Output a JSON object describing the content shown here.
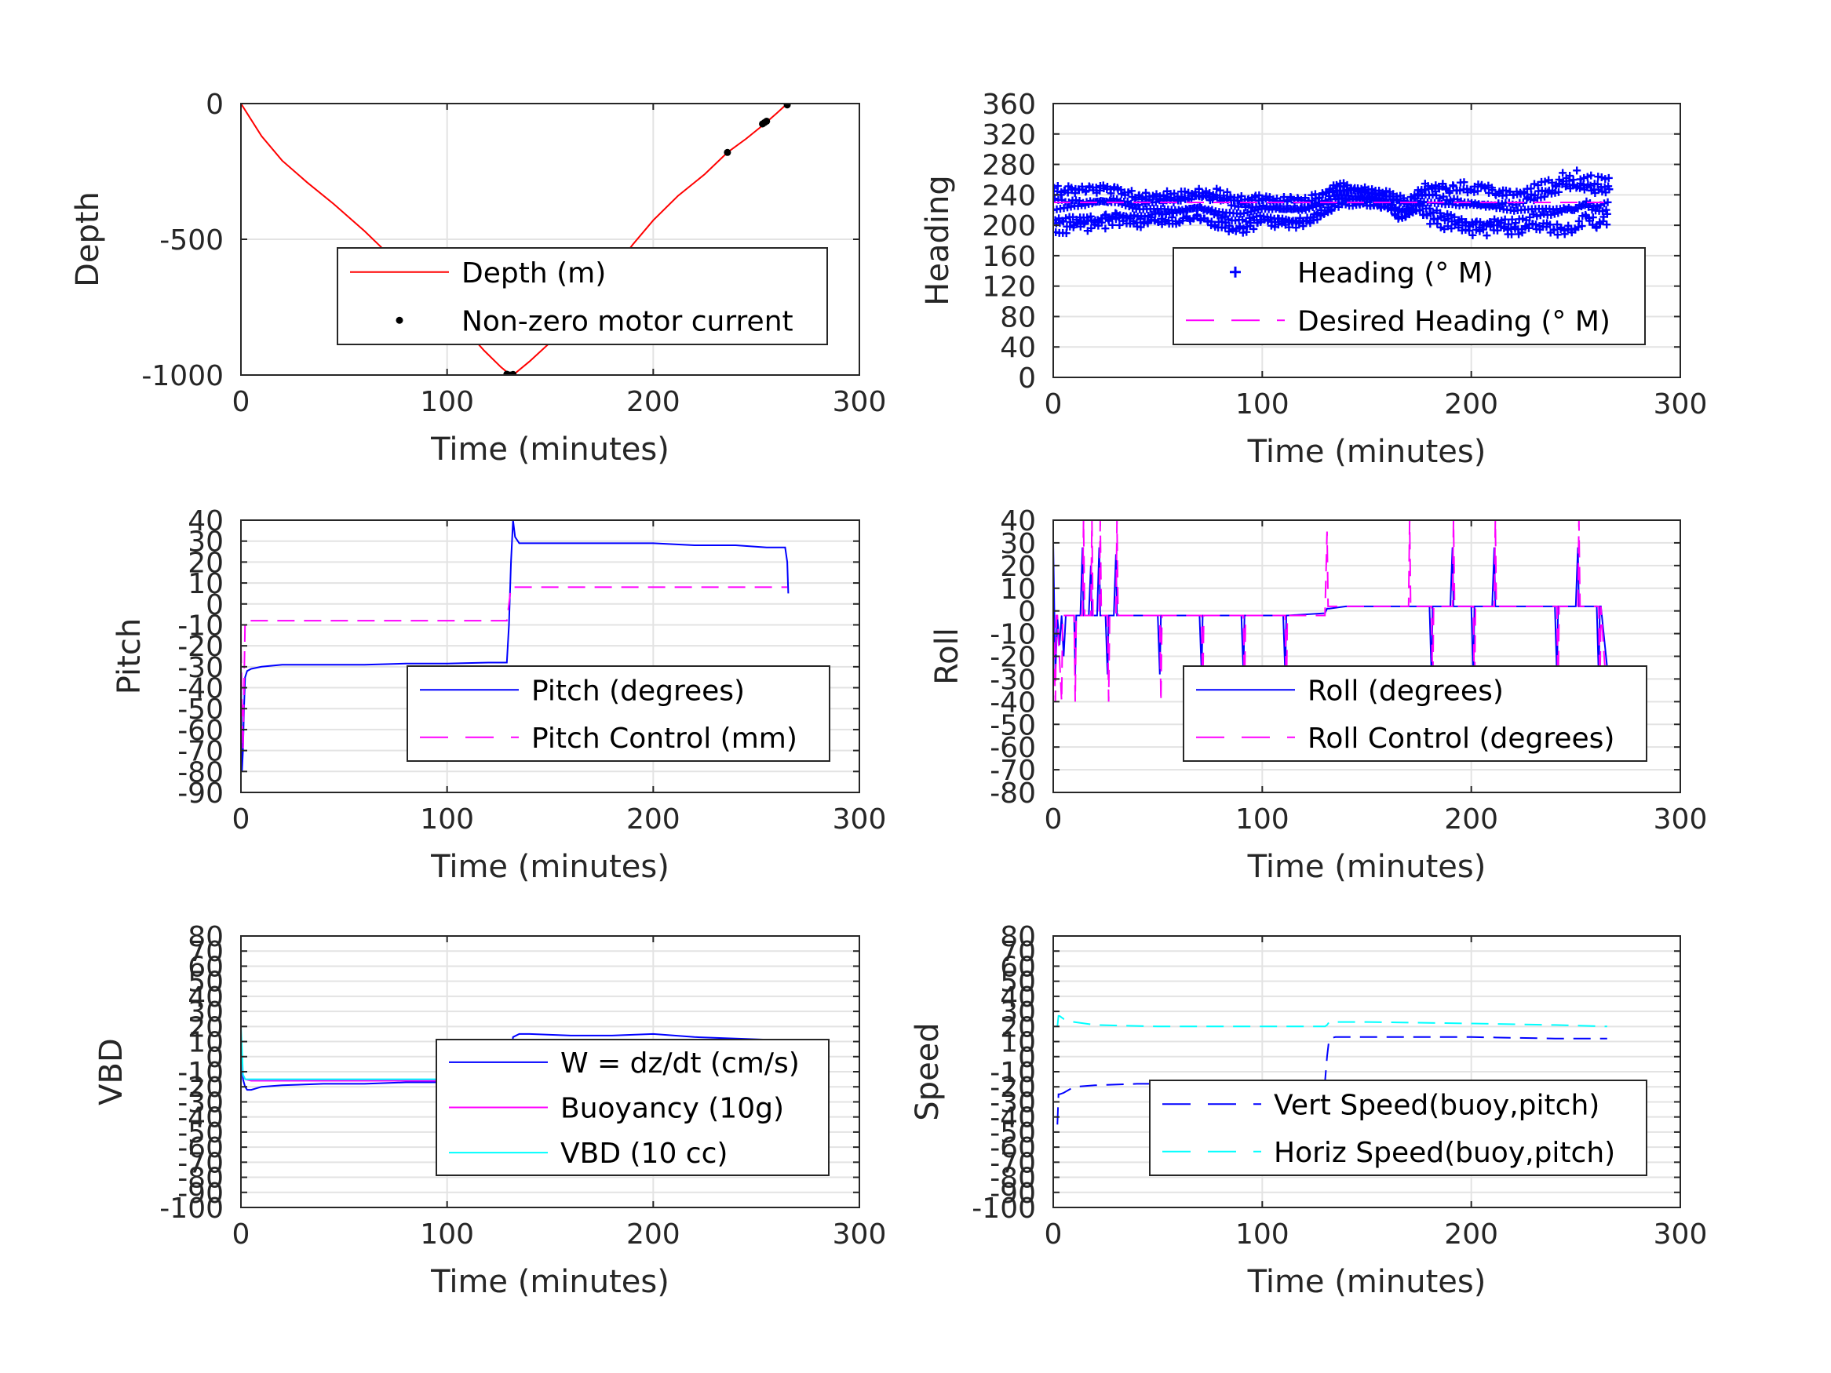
{
  "figure": {
    "background": "#ffffff"
  },
  "chart_data": [
    {
      "type": "line",
      "xlabel": "Time (minutes)",
      "ylabel": "Depth",
      "xlim": [
        0,
        300
      ],
      "ylim": [
        -1000,
        0
      ],
      "xticks": [
        "0",
        "100",
        "200",
        "300"
      ],
      "yticks": [
        "-1000",
        "-500",
        "0"
      ],
      "grid": true,
      "legend_position": "center-right",
      "series": [
        {
          "name": "Depth (m)",
          "style": "solid",
          "color": "#ff0000",
          "x": [
            0,
            10,
            20,
            32,
            45,
            60,
            75,
            90,
            105,
            118,
            126,
            130,
            132,
            140,
            150,
            160,
            170,
            180,
            190,
            200,
            212,
            225,
            236,
            245,
            254,
            260,
            265
          ],
          "y": [
            0,
            -120,
            -210,
            -290,
            -370,
            -470,
            -580,
            -690,
            -800,
            -910,
            -970,
            -995,
            -1000,
            -950,
            -880,
            -800,
            -710,
            -620,
            -520,
            -430,
            -340,
            -260,
            -180,
            -130,
            -75,
            -35,
            0
          ]
        },
        {
          "name": "Non-zero motor current",
          "style": "points",
          "color": "#000000",
          "x": [
            129,
            130,
            131,
            132,
            236,
            253,
            254,
            255,
            265
          ],
          "y": [
            -997,
            -1000,
            -1000,
            -998,
            -180,
            -75,
            -70,
            -65,
            -5
          ]
        }
      ]
    },
    {
      "type": "scatter",
      "xlabel": "Time (minutes)",
      "ylabel": "Heading",
      "xlim": [
        0,
        300
      ],
      "ylim": [
        0,
        360
      ],
      "xticks": [
        "0",
        "100",
        "200",
        "300"
      ],
      "yticks": [
        "0",
        "40",
        "80",
        "120",
        "160",
        "200",
        "240",
        "280",
        "320",
        "360"
      ],
      "grid": true,
      "legend_position": "center-right",
      "series": [
        {
          "name": "Heading (° M)",
          "style": "plus",
          "color": "#0000ff",
          "t_range": [
            0,
            266
          ],
          "band": [
            [
              0,
              185,
              255
            ],
            [
              10,
              190,
              255
            ],
            [
              20,
              190,
              258
            ],
            [
              30,
              200,
              255
            ],
            [
              40,
              195,
              245
            ],
            [
              50,
              200,
              245
            ],
            [
              60,
              200,
              245
            ],
            [
              70,
              205,
              250
            ],
            [
              80,
              190,
              250
            ],
            [
              90,
              185,
              245
            ],
            [
              100,
              200,
              240
            ],
            [
              110,
              195,
              240
            ],
            [
              120,
              195,
              240
            ],
            [
              130,
              210,
              245
            ],
            [
              135,
              220,
              260
            ],
            [
              140,
              225,
              255
            ],
            [
              150,
              225,
              250
            ],
            [
              160,
              220,
              245
            ],
            [
              165,
              205,
              240
            ],
            [
              170,
              210,
              235
            ],
            [
              175,
              215,
              250
            ],
            [
              180,
              200,
              260
            ],
            [
              190,
              190,
              260
            ],
            [
              200,
              180,
              260
            ],
            [
              210,
              185,
              255
            ],
            [
              220,
              185,
              250
            ],
            [
              230,
              190,
              255
            ],
            [
              240,
              185,
              265
            ],
            [
              245,
              180,
              280
            ],
            [
              250,
              185,
              275
            ],
            [
              255,
              200,
              270
            ],
            [
              260,
              190,
              265
            ],
            [
              266,
              200,
              265
            ]
          ]
        },
        {
          "name": "Desired Heading (° M)",
          "style": "dashed",
          "color": "#ff00ff",
          "x": [
            0,
            266
          ],
          "y": [
            230,
            230
          ]
        }
      ]
    },
    {
      "type": "line",
      "xlabel": "Time (minutes)",
      "ylabel": "Pitch",
      "xlim": [
        0,
        300
      ],
      "ylim": [
        -90,
        40
      ],
      "xticks": [
        "0",
        "100",
        "200",
        "300"
      ],
      "yticks": [
        "-90",
        "-80",
        "-70",
        "-60",
        "-50",
        "-40",
        "-30",
        "-20",
        "-10",
        "0",
        "10",
        "20",
        "30",
        "40"
      ],
      "grid": true,
      "legend_position": "lower-right",
      "series": [
        {
          "name": "Pitch (degrees)",
          "style": "solid",
          "color": "#0000ff",
          "x": [
            0,
            0.5,
            1,
            1.5,
            2,
            3,
            5,
            10,
            20,
            40,
            60,
            80,
            100,
            120,
            129,
            130,
            131,
            132,
            133,
            135,
            140,
            160,
            180,
            200,
            220,
            240,
            255,
            264,
            265,
            265.5
          ],
          "y": [
            -30,
            -80,
            -70,
            -50,
            -35,
            -32,
            -31,
            -30,
            -29,
            -29,
            -29,
            -28.5,
            -28.5,
            -28,
            -28,
            -10,
            20,
            40,
            32,
            29,
            29,
            29,
            29,
            29,
            28,
            28,
            27,
            27,
            20,
            5
          ]
        },
        {
          "name": "Pitch Control (mm)",
          "style": "dashed",
          "color": "#ff00ff",
          "x": [
            0,
            1,
            2,
            3,
            10,
            50,
            100,
            129,
            130,
            131,
            132,
            150,
            200,
            250,
            265
          ],
          "y": [
            -20,
            -70,
            -8,
            -8,
            -8,
            -8,
            -8,
            -8,
            0,
            8,
            8,
            8,
            8,
            8,
            8
          ]
        }
      ]
    },
    {
      "type": "line",
      "xlabel": "Time (minutes)",
      "ylabel": "Roll",
      "xlim": [
        0,
        300
      ],
      "ylim": [
        -80,
        40
      ],
      "xticks": [
        "0",
        "100",
        "200",
        "300"
      ],
      "yticks": [
        "-80",
        "-70",
        "-60",
        "-50",
        "-40",
        "-30",
        "-20",
        "-10",
        "0",
        "10",
        "20",
        "30",
        "40"
      ],
      "grid": true,
      "legend_position": "lower-right",
      "series": [
        {
          "name": "Roll (degrees)",
          "style": "solid",
          "color": "#0000ff",
          "x": [
            0,
            1,
            2,
            3,
            4,
            5,
            6,
            8,
            10,
            10.5,
            11,
            13,
            14,
            14.5,
            15,
            17,
            18,
            18.5,
            19,
            21,
            22,
            22.5,
            23,
            25,
            26,
            26.5,
            27,
            29,
            30,
            30.5,
            31,
            50,
            51,
            51.5,
            52,
            70,
            71,
            71.5,
            72,
            90,
            91,
            91.5,
            92,
            110,
            111,
            111.5,
            112,
            130,
            131,
            131.5,
            132,
            140,
            170,
            180,
            181,
            181.5,
            182,
            190,
            191,
            191.5,
            192,
            200,
            201,
            201.5,
            202,
            210,
            211,
            211.5,
            212,
            240,
            241,
            241.5,
            242,
            250,
            251,
            251.5,
            252,
            260,
            261,
            261.5,
            262,
            265
          ],
          "y": [
            30,
            -28,
            -3,
            -15,
            -2,
            -20,
            -2,
            -2,
            -2,
            -28,
            -2,
            -2,
            28,
            -2,
            -2,
            -2,
            20,
            -2,
            -2,
            -2,
            28,
            -2,
            -2,
            -2,
            -28,
            -2,
            -2,
            -2,
            25,
            -2,
            -2,
            -2,
            -28,
            -2,
            -2,
            -2,
            -28,
            -2,
            -2,
            -2,
            -28,
            -2,
            -2,
            -2,
            -28,
            -2,
            -2,
            -1,
            1,
            1,
            1,
            2,
            2,
            2,
            -30,
            2,
            2,
            2,
            28,
            2,
            2,
            2,
            -30,
            2,
            2,
            2,
            28,
            2,
            2,
            2,
            -30,
            2,
            2,
            2,
            28,
            2,
            2,
            2,
            -30,
            2,
            2,
            -25
          ]
        },
        {
          "name": "Roll Control (degrees)",
          "style": "dashed",
          "color": "#ff00ff",
          "x": [
            0,
            1,
            1.5,
            2,
            4,
            4.5,
            5,
            10,
            10.5,
            11,
            14,
            14.5,
            15,
            18,
            18.5,
            19,
            22,
            22.5,
            23,
            26,
            26.5,
            27,
            30,
            30.5,
            31,
            51,
            51.5,
            52,
            71,
            71.5,
            72,
            91,
            91.5,
            92,
            111,
            111.5,
            112,
            130,
            131,
            131.5,
            132,
            170,
            170.5,
            171,
            181,
            181.5,
            182,
            191,
            191.5,
            192,
            201,
            201.5,
            202,
            211,
            211.5,
            212,
            241,
            241.5,
            242,
            251,
            251.5,
            252,
            261,
            261.5,
            262,
            265
          ],
          "y": [
            -2,
            -40,
            -2,
            -2,
            -40,
            -2,
            -2,
            -2,
            -40,
            -2,
            -2,
            40,
            -2,
            -2,
            40,
            -2,
            -2,
            40,
            -2,
            -2,
            -40,
            -2,
            -2,
            40,
            -2,
            -2,
            -40,
            -2,
            -2,
            -40,
            -2,
            -2,
            -40,
            -2,
            -2,
            -40,
            -2,
            -2,
            35,
            2,
            2,
            2,
            40,
            2,
            2,
            -40,
            2,
            2,
            40,
            2,
            2,
            -40,
            2,
            2,
            40,
            2,
            2,
            -40,
            2,
            2,
            40,
            2,
            2,
            -40,
            2,
            -40
          ]
        }
      ]
    },
    {
      "type": "line",
      "xlabel": "Time (minutes)",
      "ylabel": "VBD",
      "xlim": [
        0,
        300
      ],
      "ylim": [
        -100,
        80
      ],
      "xticks": [
        "0",
        "100",
        "200",
        "300"
      ],
      "yticks": [
        "-100",
        "-90",
        "-80",
        "-70",
        "-60",
        "-50",
        "-40",
        "-30",
        "-20",
        "-10",
        "0",
        "10",
        "20",
        "30",
        "40",
        "50",
        "60",
        "70",
        "80"
      ],
      "grid": true,
      "legend_position": "center-right",
      "series": [
        {
          "name": "W = dz/dt (cm/s)",
          "style": "solid",
          "color": "#0000ff",
          "x": [
            0,
            1,
            2,
            3,
            5,
            10,
            20,
            40,
            60,
            80,
            100,
            120,
            128,
            130,
            131,
            132,
            135,
            140,
            160,
            180,
            200,
            220,
            240,
            260,
            265
          ],
          "y": [
            0,
            -15,
            -20,
            -22,
            -22,
            -20,
            -19,
            -18,
            -18,
            -17,
            -17,
            -17,
            -17,
            -10,
            0,
            13,
            15,
            15,
            14,
            14,
            15,
            13,
            12,
            11,
            11
          ]
        },
        {
          "name": "Buoyancy (10g)",
          "style": "solid",
          "color": "#ff00ff",
          "x": [
            0,
            1,
            2,
            5,
            10,
            50,
            100,
            128,
            130,
            131,
            132,
            150,
            200,
            250,
            265
          ],
          "y": [
            0,
            -12,
            -15,
            -16,
            -16,
            -16,
            -16,
            -16,
            -5,
            5,
            10,
            10,
            10,
            10,
            8
          ]
        },
        {
          "name": "VBD (10 cc)",
          "style": "solid",
          "color": "#00ffff",
          "x": [
            0,
            0.5,
            1,
            2,
            5,
            10,
            50,
            100,
            128,
            130,
            131,
            132,
            150,
            200,
            250,
            265
          ],
          "y": [
            20,
            5,
            -12,
            -15,
            -15,
            -15,
            -15,
            -15,
            -15,
            -5,
            5,
            10,
            10,
            10,
            10,
            10
          ]
        }
      ]
    },
    {
      "type": "line",
      "xlabel": "Time (minutes)",
      "ylabel": "Speed",
      "xlim": [
        0,
        300
      ],
      "ylim": [
        -100,
        80
      ],
      "xticks": [
        "0",
        "100",
        "200",
        "300"
      ],
      "yticks": [
        "-100",
        "-90",
        "-80",
        "-70",
        "-60",
        "-50",
        "-40",
        "-30",
        "-20",
        "-10",
        "0",
        "10",
        "20",
        "30",
        "40",
        "50",
        "60",
        "70",
        "80"
      ],
      "grid": true,
      "legend_position": "lower-right",
      "series": [
        {
          "name": "Vert Speed(buoy,pitch)",
          "style": "dashed",
          "color": "#0000ff",
          "x": [
            2,
            2.5,
            3,
            5,
            10,
            20,
            40,
            60,
            80,
            100,
            120,
            130,
            131,
            132,
            135,
            140,
            160,
            200,
            240,
            265
          ],
          "y": [
            -45,
            -25,
            -25,
            -24,
            -20,
            -19,
            -18,
            -18,
            -17,
            -17,
            -17,
            -17,
            0,
            12,
            13,
            13,
            13,
            13,
            12,
            12
          ]
        },
        {
          "name": "Horiz Speed(buoy,pitch)",
          "style": "dashed",
          "color": "#00ffff",
          "x": [
            2,
            2.5,
            3,
            5,
            10,
            20,
            50,
            100,
            130,
            131,
            132,
            150,
            200,
            240,
            265
          ],
          "y": [
            20,
            27,
            27,
            25,
            23,
            21,
            20,
            20,
            20,
            21,
            23,
            23,
            22,
            21,
            20
          ]
        }
      ]
    }
  ]
}
